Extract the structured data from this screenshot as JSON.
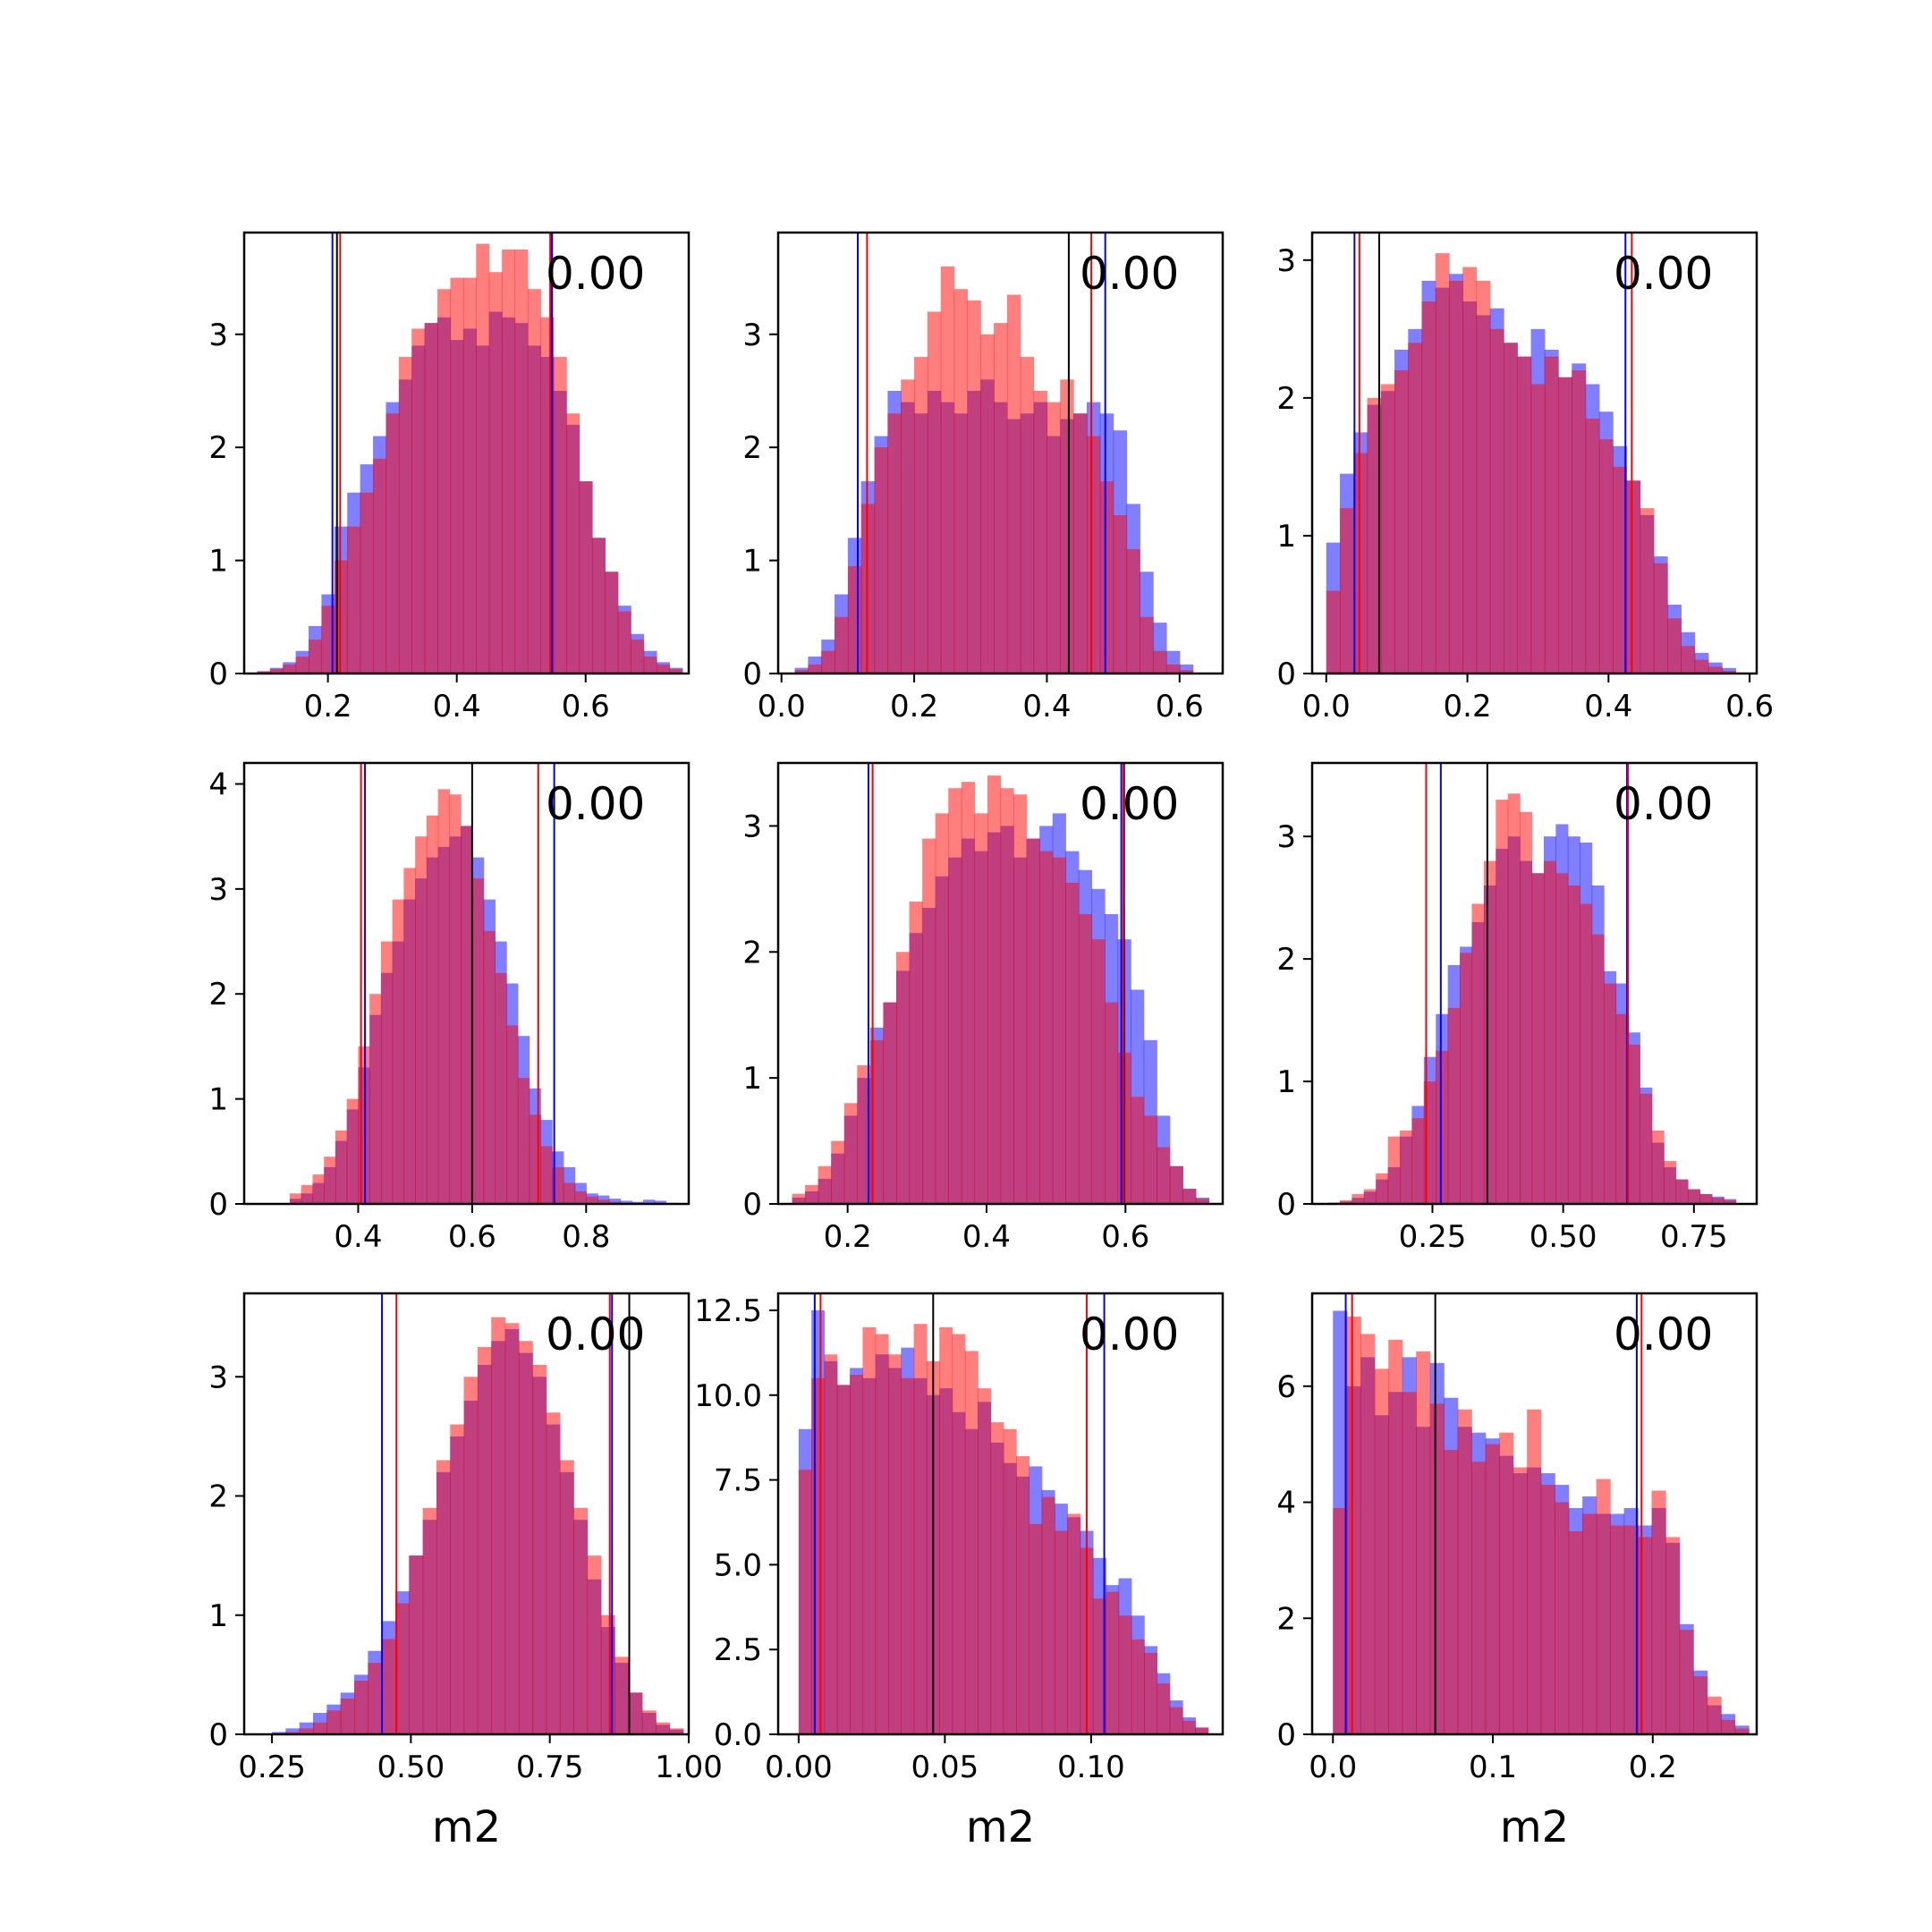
{
  "colors": {
    "series_a": "#0000ff",
    "series_b": "#ff0000",
    "reference": "#000000",
    "overlap": "#c0397a",
    "axes": "#000000",
    "background": "#ffffff"
  },
  "chart_data": [
    {
      "type": "histogram",
      "xlabel": "",
      "annotation": "0.00",
      "xlim": [
        0.07,
        0.76
      ],
      "ylim": [
        0,
        3.9
      ],
      "xticks": [
        0.2,
        0.4,
        0.6
      ],
      "xtick_labels": [
        "0.2",
        "0.4",
        "0.6"
      ],
      "yticks": [
        0,
        1,
        2,
        3
      ],
      "ytick_labels": [
        "0",
        "1",
        "2",
        "3"
      ],
      "bins": [
        0.09,
        0.75
      ],
      "blue": [
        0.02,
        0.05,
        0.1,
        0.2,
        0.42,
        0.7,
        1.3,
        1.6,
        1.85,
        2.1,
        2.4,
        2.6,
        2.9,
        3.1,
        3.15,
        2.95,
        3.05,
        2.9,
        3.2,
        3.15,
        3.1,
        2.9,
        2.8,
        2.5,
        2.2,
        1.7,
        1.2,
        0.9,
        0.6,
        0.35,
        0.2,
        0.1,
        0.05
      ],
      "red": [
        0.02,
        0.04,
        0.08,
        0.15,
        0.3,
        0.6,
        1.0,
        1.3,
        1.6,
        1.9,
        2.3,
        2.8,
        3.05,
        3.1,
        3.4,
        3.5,
        3.5,
        3.8,
        3.55,
        3.75,
        3.75,
        3.4,
        3.15,
        2.8,
        2.3,
        1.7,
        1.2,
        0.9,
        0.55,
        0.3,
        0.15,
        0.08,
        0.04
      ],
      "vlines": {
        "blue": [
          0.207,
          0.548
        ],
        "red": [
          0.219,
          0.545
        ],
        "black": [
          0.214,
          0.546
        ]
      }
    },
    {
      "type": "histogram",
      "xlabel": "",
      "annotation": "0.00",
      "xlim": [
        -0.005,
        0.665
      ],
      "ylim": [
        0,
        3.9
      ],
      "xticks": [
        0.0,
        0.2,
        0.4,
        0.6
      ],
      "xtick_labels": [
        "0.0",
        "0.2",
        "0.4",
        "0.6"
      ],
      "yticks": [
        0,
        1,
        2,
        3
      ],
      "ytick_labels": [
        "0",
        "1",
        "2",
        "3"
      ],
      "bins": [
        0.02,
        0.62
      ],
      "blue": [
        0.05,
        0.15,
        0.3,
        0.7,
        1.2,
        1.7,
        2.1,
        2.5,
        2.4,
        2.3,
        2.5,
        2.4,
        2.3,
        2.5,
        2.6,
        2.4,
        2.25,
        2.3,
        2.4,
        2.1,
        2.25,
        2.3,
        2.4,
        2.3,
        2.15,
        1.5,
        0.9,
        0.45,
        0.2,
        0.08
      ],
      "red": [
        0.03,
        0.08,
        0.2,
        0.5,
        0.95,
        1.5,
        2.0,
        2.3,
        2.6,
        2.8,
        3.2,
        3.6,
        3.4,
        3.3,
        3.0,
        3.1,
        3.35,
        2.8,
        2.5,
        2.4,
        2.6,
        2.3,
        2.1,
        1.7,
        1.4,
        1.1,
        0.5,
        0.2,
        0.08,
        0.03
      ],
      "vlines": {
        "blue": [
          0.115,
          0.488
        ],
        "red": [
          0.129,
          0.467
        ],
        "black": [
          0.433
        ]
      }
    },
    {
      "type": "histogram",
      "xlabel": "",
      "annotation": "0.00",
      "xlim": [
        -0.02,
        0.61
      ],
      "ylim": [
        0,
        3.2
      ],
      "xticks": [
        0.0,
        0.2,
        0.4,
        0.6
      ],
      "xtick_labels": [
        "0.0",
        "0.2",
        "0.4",
        "0.6"
      ],
      "yticks": [
        0,
        1,
        2,
        3
      ],
      "ytick_labels": [
        "0",
        "1",
        "2",
        "3"
      ],
      "bins": [
        0.0,
        0.58
      ],
      "blue": [
        0.95,
        1.45,
        1.75,
        1.95,
        2.05,
        2.35,
        2.5,
        2.85,
        2.8,
        2.9,
        2.7,
        2.6,
        2.65,
        2.4,
        2.3,
        2.5,
        2.35,
        2.15,
        2.25,
        2.1,
        1.9,
        1.65,
        1.4,
        1.15,
        0.85,
        0.5,
        0.3,
        0.15,
        0.08,
        0.04
      ],
      "red": [
        0.6,
        1.2,
        1.6,
        2.0,
        2.1,
        2.2,
        2.4,
        2.7,
        3.05,
        2.85,
        2.95,
        2.85,
        2.5,
        2.4,
        2.3,
        2.1,
        2.3,
        2.15,
        2.2,
        1.85,
        1.7,
        1.5,
        1.4,
        1.2,
        0.8,
        0.4,
        0.2,
        0.1,
        0.05,
        0.02
      ],
      "vlines": {
        "blue": [
          0.04,
          0.424
        ],
        "red": [
          0.047,
          0.433
        ],
        "black": [
          0.075
        ]
      }
    },
    {
      "type": "histogram",
      "xlabel": "",
      "annotation": "0.00",
      "xlim": [
        0.2,
        0.98
      ],
      "ylim": [
        0,
        4.2
      ],
      "xticks": [
        0.4,
        0.6,
        0.8
      ],
      "xtick_labels": [
        "0.4",
        "0.6",
        "0.8"
      ],
      "yticks": [
        0,
        1,
        2,
        3,
        4
      ],
      "ytick_labels": [
        "0",
        "1",
        "2",
        "3",
        "4"
      ],
      "bins": [
        0.28,
        0.96
      ],
      "blue": [
        0.05,
        0.1,
        0.2,
        0.35,
        0.6,
        0.9,
        1.3,
        1.8,
        2.2,
        2.5,
        2.9,
        3.1,
        3.3,
        3.4,
        3.5,
        3.6,
        3.3,
        2.9,
        2.5,
        2.1,
        1.6,
        1.1,
        0.8,
        0.5,
        0.35,
        0.2,
        0.1,
        0.08,
        0.05,
        0.03,
        0.02,
        0.04,
        0.03,
        0.01
      ],
      "red": [
        0.1,
        0.18,
        0.28,
        0.45,
        0.7,
        1.0,
        1.5,
        2.0,
        2.5,
        2.9,
        3.2,
        3.5,
        3.7,
        3.95,
        3.9,
        3.6,
        3.1,
        2.6,
        2.2,
        1.7,
        1.2,
        0.85,
        0.55,
        0.35,
        0.2,
        0.12,
        0.07,
        0.04,
        0.02,
        0.01,
        0.01,
        0.01,
        0.01,
        0.0
      ],
      "vlines": {
        "blue": [
          0.412,
          0.744
        ],
        "red": [
          0.405,
          0.716
        ],
        "black": [
          0.6
        ]
      }
    },
    {
      "type": "histogram",
      "xlabel": "",
      "annotation": "0.00",
      "xlim": [
        0.1,
        0.74
      ],
      "ylim": [
        0,
        3.5
      ],
      "xticks": [
        0.2,
        0.4,
        0.6
      ],
      "xtick_labels": [
        "0.2",
        "0.4",
        "0.6"
      ],
      "yticks": [
        0,
        1,
        2,
        3
      ],
      "ytick_labels": [
        "0",
        "1",
        "2",
        "3"
      ],
      "bins": [
        0.12,
        0.72
      ],
      "blue": [
        0.05,
        0.1,
        0.2,
        0.4,
        0.7,
        1.0,
        1.4,
        1.6,
        1.85,
        2.15,
        2.35,
        2.6,
        2.75,
        2.9,
        2.8,
        2.95,
        3.0,
        2.75,
        2.9,
        3.0,
        3.1,
        2.8,
        2.65,
        2.5,
        2.3,
        2.1,
        1.7,
        1.3,
        0.7,
        0.3,
        0.12,
        0.05
      ],
      "red": [
        0.08,
        0.15,
        0.3,
        0.5,
        0.8,
        1.1,
        1.3,
        1.6,
        2.0,
        2.4,
        2.9,
        3.1,
        3.3,
        3.35,
        3.1,
        3.4,
        3.3,
        3.25,
        2.9,
        2.8,
        2.75,
        2.55,
        2.3,
        2.1,
        1.6,
        1.2,
        0.85,
        0.7,
        0.45,
        0.3,
        0.12,
        0.04
      ],
      "vlines": {
        "blue": [
          0.23,
          0.594
        ],
        "red": [
          0.236,
          0.597
        ],
        "black": [
          0.598
        ]
      }
    },
    {
      "type": "histogram",
      "xlabel": "",
      "annotation": "0.00",
      "xlim": [
        0.02,
        0.87
      ],
      "ylim": [
        0,
        3.6
      ],
      "xticks": [
        0.25,
        0.5,
        0.75
      ],
      "xtick_labels": [
        "0.25",
        "0.50",
        "0.75"
      ],
      "yticks": [
        0,
        1,
        2,
        3
      ],
      "ytick_labels": [
        "0",
        "1",
        "2",
        "3"
      ],
      "bins": [
        0.05,
        0.83
      ],
      "blue": [
        0.01,
        0.02,
        0.05,
        0.1,
        0.2,
        0.3,
        0.55,
        0.8,
        1.2,
        1.55,
        1.95,
        2.1,
        2.3,
        2.6,
        2.9,
        3.0,
        2.8,
        2.7,
        3.0,
        3.1,
        3.0,
        2.95,
        2.6,
        1.9,
        1.8,
        1.4,
        0.95,
        0.5,
        0.3,
        0.2,
        0.12,
        0.08,
        0.06,
        0.04
      ],
      "red": [
        0.01,
        0.03,
        0.08,
        0.12,
        0.25,
        0.55,
        0.6,
        0.7,
        1.0,
        1.25,
        1.6,
        2.05,
        2.45,
        2.8,
        3.3,
        3.35,
        3.2,
        2.7,
        2.8,
        2.7,
        2.6,
        2.45,
        2.2,
        1.8,
        1.55,
        1.3,
        0.9,
        0.6,
        0.35,
        0.2,
        0.12,
        0.08,
        0.05,
        0.03
      ],
      "vlines": {
        "blue": [
          0.266,
          0.622
        ],
        "red": [
          0.238,
          0.624
        ],
        "black": [
          0.355
        ]
      }
    },
    {
      "type": "histogram",
      "xlabel": "m2",
      "annotation": "0.00",
      "xlim": [
        0.2,
        1.0
      ],
      "ylim": [
        0,
        3.7
      ],
      "xticks": [
        0.25,
        0.5,
        0.75,
        1.0
      ],
      "xtick_labels": [
        "0.25",
        "0.50",
        "0.75",
        "1.00"
      ],
      "yticks": [
        0,
        1,
        2,
        3
      ],
      "ytick_labels": [
        "0",
        "1",
        "2",
        "3"
      ],
      "bins": [
        0.25,
        0.99
      ],
      "blue": [
        0.02,
        0.05,
        0.1,
        0.18,
        0.25,
        0.35,
        0.5,
        0.7,
        0.95,
        1.2,
        1.5,
        1.8,
        2.2,
        2.5,
        2.8,
        3.1,
        3.3,
        3.4,
        3.2,
        3.0,
        2.6,
        2.2,
        1.8,
        1.3,
        0.9,
        0.6,
        0.35,
        0.18,
        0.08,
        0.04
      ],
      "red": [
        0.01,
        0.02,
        0.05,
        0.1,
        0.2,
        0.3,
        0.45,
        0.6,
        0.8,
        1.1,
        1.5,
        1.9,
        2.3,
        2.6,
        3.0,
        3.25,
        3.5,
        3.45,
        3.3,
        3.1,
        2.7,
        2.3,
        1.9,
        1.5,
        1.0,
        0.65,
        0.35,
        0.2,
        0.1,
        0.05
      ],
      "vlines": {
        "blue": [
          0.448,
          0.862
        ],
        "red": [
          0.474,
          0.858
        ],
        "black": [
          0.893
        ]
      }
    },
    {
      "type": "histogram",
      "xlabel": "m2",
      "annotation": "0.00",
      "xlim": [
        -0.007,
        0.145
      ],
      "ylim": [
        0,
        13.0
      ],
      "xticks": [
        0.0,
        0.05,
        0.1
      ],
      "xtick_labels": [
        "0.00",
        "0.05",
        "0.10"
      ],
      "yticks": [
        0,
        2.5,
        5.0,
        7.5,
        10.0,
        12.5
      ],
      "ytick_labels": [
        "0.0",
        "2.5",
        "5.0",
        "7.5",
        "10.0",
        "12.5"
      ],
      "bins": [
        0.0,
        0.14
      ],
      "blue": [
        9.0,
        12.5,
        11.0,
        10.3,
        10.8,
        10.5,
        11.2,
        10.8,
        11.4,
        10.5,
        10.0,
        10.2,
        9.5,
        9.0,
        9.8,
        8.6,
        8.0,
        7.6,
        7.9,
        7.2,
        6.8,
        6.4,
        6.0,
        5.2,
        4.4,
        4.6,
        3.5,
        2.6,
        1.8,
        1.0,
        0.5,
        0.2
      ],
      "red": [
        7.8,
        10.5,
        11.2,
        10.3,
        10.6,
        12.0,
        11.8,
        11.2,
        10.5,
        12.1,
        11.0,
        12.0,
        11.8,
        11.3,
        10.2,
        9.2,
        9.0,
        8.2,
        6.2,
        7.0,
        6.0,
        6.5,
        5.5,
        4.0,
        4.2,
        3.5,
        2.8,
        2.4,
        1.5,
        0.8,
        0.4,
        0.2
      ],
      "vlines": {
        "blue": [
          0.0055,
          0.1045
        ],
        "red": [
          0.0075,
          0.0985
        ],
        "black": [
          0.046
        ]
      }
    },
    {
      "type": "histogram",
      "xlabel": "m2",
      "annotation": "0.00",
      "xlim": [
        -0.013,
        0.265
      ],
      "ylim": [
        0,
        7.6
      ],
      "xticks": [
        0.0,
        0.1,
        0.2
      ],
      "xtick_labels": [
        "0.0",
        "0.1",
        "0.2"
      ],
      "yticks": [
        0,
        2,
        4,
        6
      ],
      "ytick_labels": [
        "0",
        "2",
        "4",
        "6"
      ],
      "bins": [
        0.0,
        0.26
      ],
      "blue": [
        7.3,
        6.0,
        6.5,
        5.5,
        5.9,
        6.5,
        5.3,
        6.4,
        5.8,
        5.3,
        5.2,
        5.1,
        4.8,
        4.5,
        4.6,
        4.5,
        4.3,
        3.9,
        4.1,
        3.8,
        3.8,
        3.9,
        3.6,
        3.9,
        3.3,
        1.9,
        1.1,
        0.5,
        0.35,
        0.15
      ],
      "red": [
        3.9,
        7.2,
        6.9,
        6.3,
        6.8,
        5.9,
        6.6,
        5.7,
        4.9,
        5.6,
        4.7,
        5.0,
        5.2,
        4.6,
        5.6,
        4.3,
        4.0,
        3.5,
        3.8,
        4.4,
        3.6,
        3.6,
        3.4,
        4.2,
        3.4,
        1.8,
        1.0,
        0.65,
        0.25,
        0.1
      ],
      "vlines": {
        "blue": [
          0.008,
          0.19
        ],
        "red": [
          0.012,
          0.193
        ],
        "black": [
          0.064
        ]
      }
    }
  ]
}
